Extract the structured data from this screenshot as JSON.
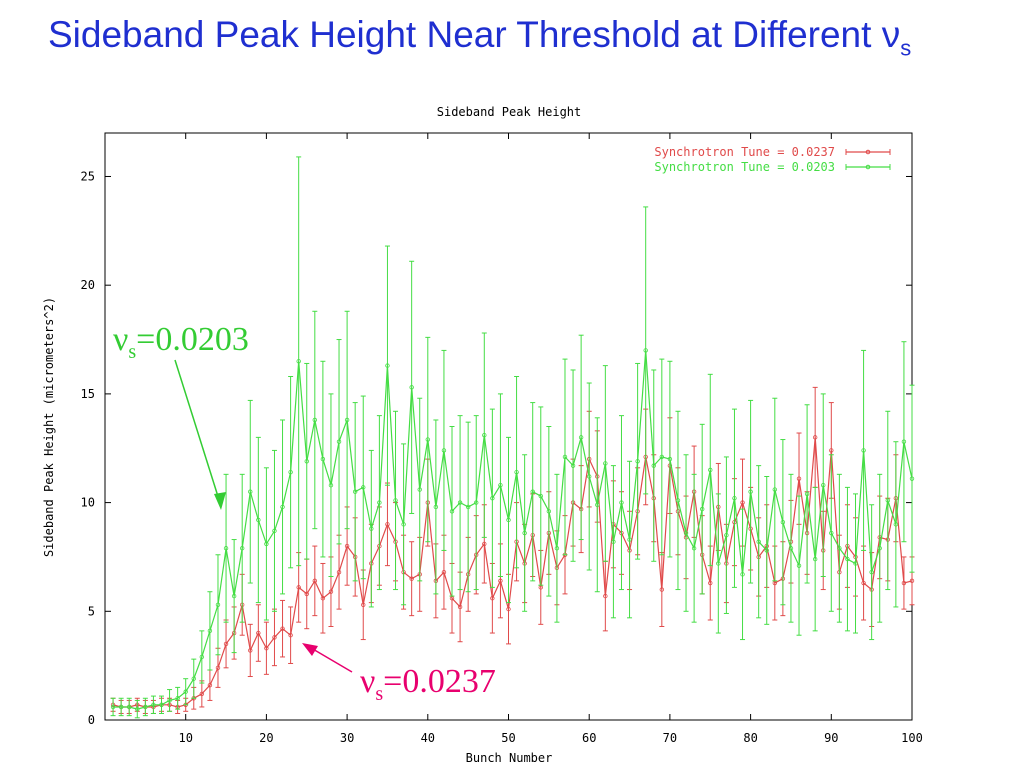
{
  "slide": {
    "title_main": "Sideband Peak Height Near Threshold at Different ν",
    "title_sub": "s"
  },
  "annotations": {
    "green": {
      "nu": "ν",
      "sub": "s",
      "value": "=0.0203",
      "color": "#33cc33"
    },
    "red": {
      "nu": "ν",
      "sub": "s",
      "value": "=0.0237",
      "color": "#e8006e"
    }
  },
  "chart_data": {
    "type": "line",
    "title": "Sideband Peak Height",
    "xlabel": "Bunch Number",
    "ylabel": "Sideband Peak Height (micrometers^2)",
    "xlim": [
      0,
      100
    ],
    "ylim": [
      0,
      27
    ],
    "xticks": [
      10,
      20,
      30,
      40,
      50,
      60,
      70,
      80,
      90,
      100
    ],
    "yticks": [
      0,
      5,
      10,
      15,
      20,
      25
    ],
    "grid": false,
    "legend_position": "top-right",
    "error_bars": true,
    "series": [
      {
        "name": "Synchrotron Tune = 0.0237",
        "color": "#e04a4a",
        "x": [
          1,
          2,
          3,
          4,
          5,
          6,
          7,
          8,
          9,
          10,
          11,
          12,
          13,
          14,
          15,
          16,
          17,
          18,
          19,
          20,
          21,
          22,
          23,
          24,
          25,
          26,
          27,
          28,
          29,
          30,
          31,
          32,
          33,
          34,
          35,
          36,
          37,
          38,
          39,
          40,
          41,
          42,
          43,
          44,
          45,
          46,
          47,
          48,
          49,
          50,
          51,
          52,
          53,
          54,
          55,
          56,
          57,
          58,
          59,
          60,
          61,
          62,
          63,
          64,
          65,
          66,
          67,
          68,
          69,
          70,
          71,
          72,
          73,
          74,
          75,
          76,
          77,
          78,
          79,
          80,
          81,
          82,
          83,
          84,
          85,
          86,
          87,
          88,
          89,
          90,
          91,
          92,
          93,
          94,
          95,
          96,
          97,
          98,
          99,
          100
        ],
        "y": [
          0.7,
          0.6,
          0.6,
          0.7,
          0.6,
          0.6,
          0.7,
          0.7,
          0.6,
          0.7,
          1.0,
          1.2,
          1.6,
          2.4,
          3.5,
          4.0,
          5.3,
          3.2,
          4.0,
          3.3,
          3.8,
          4.2,
          3.9,
          6.1,
          5.8,
          6.4,
          5.6,
          5.9,
          6.8,
          8.0,
          7.5,
          5.3,
          7.2,
          8.0,
          9.0,
          8.2,
          6.8,
          6.5,
          6.7,
          10.0,
          6.4,
          6.8,
          5.6,
          5.2,
          6.7,
          7.6,
          8.1,
          5.6,
          6.4,
          5.1,
          8.2,
          7.2,
          8.5,
          6.1,
          8.6,
          7.0,
          7.6,
          10.0,
          9.7,
          12.0,
          11.2,
          5.7,
          9.0,
          8.6,
          7.8,
          9.6,
          12.1,
          10.2,
          6.0,
          11.7,
          9.6,
          8.4,
          10.5,
          7.6,
          6.3,
          9.8,
          7.2,
          9.1,
          10.0,
          8.8,
          7.5,
          8.0,
          6.3,
          6.5,
          8.2,
          11.1,
          8.6,
          13.0,
          7.8,
          12.4,
          6.8,
          8.0,
          7.5,
          6.3,
          6.0,
          8.4,
          8.3,
          10.2,
          6.3,
          6.4
        ],
        "err": [
          0.3,
          0.3,
          0.3,
          0.3,
          0.3,
          0.3,
          0.3,
          0.3,
          0.3,
          0.3,
          0.5,
          0.6,
          0.7,
          0.9,
          1.1,
          1.2,
          1.4,
          1.2,
          1.3,
          1.2,
          1.3,
          1.3,
          1.3,
          1.6,
          1.6,
          1.6,
          1.6,
          1.6,
          1.7,
          1.8,
          1.8,
          1.6,
          1.8,
          1.8,
          1.9,
          1.8,
          1.7,
          1.7,
          1.7,
          2.0,
          1.7,
          1.7,
          1.6,
          1.6,
          1.7,
          1.8,
          1.8,
          1.6,
          1.7,
          1.6,
          1.8,
          1.8,
          1.9,
          1.7,
          1.9,
          1.7,
          1.8,
          2.0,
          2.0,
          2.2,
          2.1,
          1.6,
          2.0,
          1.9,
          1.8,
          2.0,
          2.2,
          2.0,
          1.7,
          2.2,
          2.0,
          1.9,
          2.1,
          1.8,
          1.7,
          2.0,
          1.8,
          2.0,
          2.0,
          1.9,
          1.8,
          1.9,
          1.7,
          1.7,
          1.9,
          2.1,
          1.9,
          2.3,
          1.8,
          2.2,
          1.7,
          1.9,
          1.8,
          1.7,
          1.7,
          1.9,
          1.9,
          2.0,
          1.2,
          1.1
        ]
      },
      {
        "name": "Synchrotron Tune = 0.0203",
        "color": "#44dd44",
        "x": [
          1,
          2,
          3,
          4,
          5,
          6,
          7,
          8,
          9,
          10,
          11,
          12,
          13,
          14,
          15,
          16,
          17,
          18,
          19,
          20,
          21,
          22,
          23,
          24,
          25,
          26,
          27,
          28,
          29,
          30,
          31,
          32,
          33,
          34,
          35,
          36,
          37,
          38,
          39,
          40,
          41,
          42,
          43,
          44,
          45,
          46,
          47,
          48,
          49,
          50,
          51,
          52,
          53,
          54,
          55,
          56,
          57,
          58,
          59,
          60,
          61,
          62,
          63,
          64,
          65,
          66,
          67,
          68,
          69,
          70,
          71,
          72,
          73,
          74,
          75,
          76,
          77,
          78,
          79,
          80,
          81,
          82,
          83,
          84,
          85,
          86,
          87,
          88,
          89,
          90,
          91,
          92,
          93,
          94,
          95,
          96,
          97,
          98,
          99,
          100
        ],
        "y": [
          0.6,
          0.6,
          0.6,
          0.5,
          0.6,
          0.7,
          0.7,
          0.9,
          1.0,
          1.3,
          1.9,
          2.9,
          4.1,
          5.3,
          7.9,
          5.7,
          7.9,
          10.5,
          9.2,
          8.1,
          8.7,
          9.8,
          11.4,
          16.5,
          11.9,
          13.8,
          12.0,
          10.8,
          12.8,
          13.8,
          10.5,
          10.7,
          8.8,
          10.0,
          16.3,
          10.1,
          9.0,
          15.3,
          10.6,
          12.9,
          9.8,
          12.4,
          9.6,
          10.0,
          9.8,
          10.0,
          13.1,
          10.2,
          10.8,
          9.2,
          11.4,
          8.6,
          10.5,
          10.3,
          9.6,
          7.9,
          12.1,
          11.7,
          13.0,
          11.2,
          9.9,
          11.8,
          8.2,
          10.0,
          8.3,
          11.9,
          17.0,
          11.7,
          12.1,
          12.0,
          10.1,
          8.6,
          7.9,
          9.7,
          11.5,
          7.2,
          8.5,
          10.2,
          6.7,
          10.5,
          8.2,
          7.8,
          10.6,
          9.1,
          7.9,
          7.1,
          10.4,
          7.4,
          10.8,
          8.6,
          7.9,
          7.4,
          7.2,
          12.4,
          6.8,
          7.9,
          10.1,
          9.0,
          12.8,
          11.1
        ],
        "err": [
          0.4,
          0.4,
          0.4,
          0.4,
          0.4,
          0.4,
          0.4,
          0.5,
          0.5,
          0.6,
          0.9,
          1.2,
          1.8,
          2.3,
          3.4,
          2.6,
          3.4,
          4.2,
          3.8,
          3.5,
          3.7,
          4.0,
          4.4,
          9.4,
          4.5,
          5.0,
          4.5,
          4.2,
          4.7,
          5.0,
          4.1,
          4.2,
          3.6,
          4.0,
          5.5,
          4.1,
          3.7,
          5.8,
          4.2,
          4.7,
          4.0,
          4.6,
          3.9,
          4.0,
          3.9,
          4.0,
          4.7,
          4.1,
          4.2,
          3.8,
          4.4,
          3.6,
          4.1,
          4.1,
          3.9,
          3.4,
          4.5,
          4.4,
          4.7,
          4.3,
          4.0,
          4.5,
          3.5,
          4.0,
          3.6,
          4.5,
          6.6,
          4.4,
          4.5,
          4.5,
          4.1,
          3.6,
          3.4,
          3.9,
          4.4,
          3.2,
          3.6,
          4.1,
          3.0,
          4.2,
          3.5,
          3.4,
          4.2,
          3.8,
          3.4,
          3.2,
          4.1,
          3.3,
          4.2,
          3.6,
          3.4,
          3.3,
          3.2,
          4.6,
          3.1,
          3.4,
          4.1,
          3.8,
          4.6,
          4.3
        ]
      }
    ]
  }
}
